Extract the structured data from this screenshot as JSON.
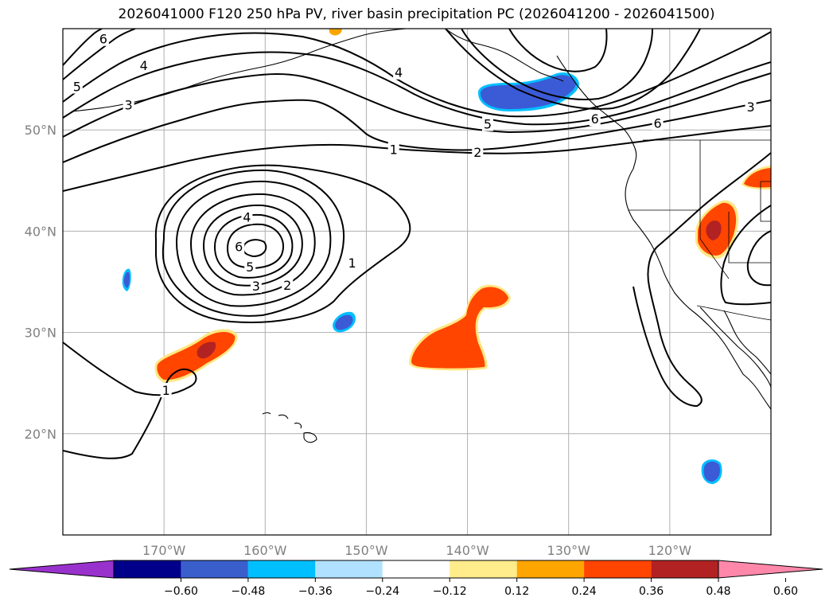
{
  "title": "2026041000 F120 250 hPa PV, river basin precipitation PC (2026041200 - 2026041500)",
  "map": {
    "lon_range": [
      -180,
      -110
    ],
    "lat_range": [
      10,
      60
    ],
    "lat_ticks": [
      {
        "value": 20,
        "label": "20°N"
      },
      {
        "value": 30,
        "label": "30°N"
      },
      {
        "value": 40,
        "label": "40°N"
      },
      {
        "value": 50,
        "label": "50°N"
      }
    ],
    "lon_ticks": [
      {
        "value": -170,
        "label": "170°W"
      },
      {
        "value": -160,
        "label": "160°W"
      },
      {
        "value": -150,
        "label": "150°W"
      },
      {
        "value": -140,
        "label": "140°W"
      },
      {
        "value": -130,
        "label": "130°W"
      },
      {
        "value": -120,
        "label": "120°W"
      }
    ],
    "pv_contour_labels": [
      {
        "text": "6",
        "lon": -176,
        "lat": 59
      },
      {
        "text": "4",
        "lon": -172,
        "lat": 56.4
      },
      {
        "text": "5",
        "lon": -178.6,
        "lat": 54.3
      },
      {
        "text": "3",
        "lon": -173.5,
        "lat": 52.5
      },
      {
        "text": "4",
        "lon": -146.8,
        "lat": 55.7
      },
      {
        "text": "5",
        "lon": -138,
        "lat": 50.6
      },
      {
        "text": "2",
        "lon": -139,
        "lat": 47.8
      },
      {
        "text": "1",
        "lon": -147.3,
        "lat": 48.1
      },
      {
        "text": "6",
        "lon": -127.4,
        "lat": 51.1
      },
      {
        "text": "6",
        "lon": -121.2,
        "lat": 50.7
      },
      {
        "text": "3",
        "lon": -112,
        "lat": 52.3
      },
      {
        "text": "4",
        "lon": -161.8,
        "lat": 41.4
      },
      {
        "text": "6",
        "lon": -162.6,
        "lat": 38.5
      },
      {
        "text": "5",
        "lon": -161.5,
        "lat": 36.5
      },
      {
        "text": "3",
        "lon": -160.9,
        "lat": 34.6
      },
      {
        "text": "2",
        "lon": -157.8,
        "lat": 34.7
      },
      {
        "text": "1",
        "lon": -151.4,
        "lat": 36.9
      },
      {
        "text": "1",
        "lon": -169.8,
        "lat": 24.3
      }
    ],
    "precip_colors": {
      "neg_deep": "#1f0080",
      "neg_mid": "#3b5bd6",
      "neg_light": "#00bfff",
      "pos_light": "#ffe680",
      "pos_mid": "#ff4500",
      "pos_deep": "#b22222"
    }
  },
  "colorbar": {
    "colors": [
      "#9932cc",
      "#00008b",
      "#3a5fcd",
      "#00bfff",
      "#b0e2ff",
      "#ffffff",
      "#ffec8b",
      "#ffa500",
      "#ff4500",
      "#b22222",
      "#ff88aa"
    ],
    "ticks": [
      "−0.60",
      "−0.48",
      "−0.36",
      "−0.24",
      "−0.12",
      "0.12",
      "0.24",
      "0.36",
      "0.48",
      "0.60"
    ]
  }
}
